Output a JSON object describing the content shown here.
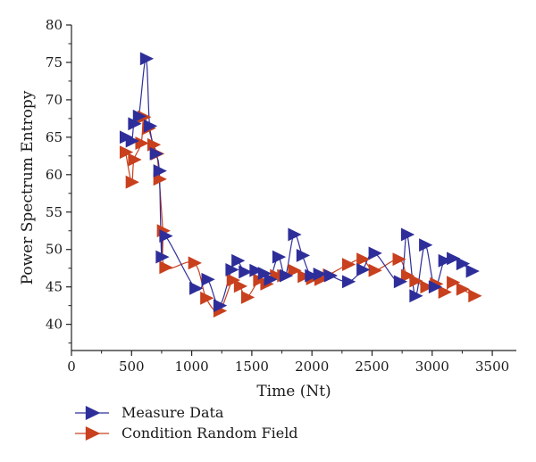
{
  "chart_data": {
    "type": "scatter",
    "xlabel": "Time (Nt)",
    "ylabel": "Power Spectrum Entropy",
    "xlim": [
      0,
      3700
    ],
    "ylim": [
      36.5,
      80
    ],
    "xticks": [
      0,
      500,
      1000,
      1500,
      2000,
      2500,
      3000,
      3500
    ],
    "yticks": [
      40,
      45,
      50,
      55,
      60,
      65,
      70,
      75,
      80
    ],
    "xtick_labels": [
      "0",
      "500",
      "1000",
      "1500",
      "2000",
      "2500",
      "3000",
      "3500"
    ],
    "ytick_labels": [
      "40",
      "45",
      "50",
      "55",
      "60",
      "65",
      "70",
      "75",
      "80"
    ],
    "grid": false,
    "legend_position": "bottom-left",
    "marker": "right-triangle",
    "series": [
      {
        "name": "Measure Data",
        "color": "#2e2e9a",
        "points": [
          [
            450,
            65.0
          ],
          [
            500,
            64.5
          ],
          [
            520,
            66.8
          ],
          [
            560,
            67.8
          ],
          [
            620,
            75.5
          ],
          [
            650,
            66.5
          ],
          [
            700,
            62.8
          ],
          [
            730,
            60.5
          ],
          [
            750,
            49.0
          ],
          [
            780,
            51.8
          ],
          [
            1030,
            44.8
          ],
          [
            1130,
            46.0
          ],
          [
            1230,
            42.5
          ],
          [
            1330,
            47.3
          ],
          [
            1380,
            48.5
          ],
          [
            1440,
            47.0
          ],
          [
            1530,
            47.2
          ],
          [
            1600,
            46.8
          ],
          [
            1650,
            46.0
          ],
          [
            1720,
            49.0
          ],
          [
            1780,
            46.5
          ],
          [
            1850,
            52.0
          ],
          [
            1920,
            49.2
          ],
          [
            1990,
            46.5
          ],
          [
            2060,
            46.7
          ],
          [
            2150,
            46.5
          ],
          [
            2300,
            45.7
          ],
          [
            2420,
            47.3
          ],
          [
            2520,
            49.5
          ],
          [
            2730,
            45.7
          ],
          [
            2790,
            52.0
          ],
          [
            2860,
            43.8
          ],
          [
            2940,
            50.6
          ],
          [
            3020,
            45.0
          ],
          [
            3100,
            48.5
          ],
          [
            3170,
            48.8
          ],
          [
            3250,
            48.1
          ],
          [
            3330,
            47.1
          ]
        ]
      },
      {
        "name": "Condition Random Field",
        "color": "#c8401e",
        "points": [
          [
            450,
            63.0
          ],
          [
            500,
            59.0
          ],
          [
            520,
            62.0
          ],
          [
            580,
            64.2
          ],
          [
            600,
            67.7
          ],
          [
            640,
            66.2
          ],
          [
            680,
            64.0
          ],
          [
            710,
            62.8
          ],
          [
            730,
            59.4
          ],
          [
            760,
            52.5
          ],
          [
            780,
            47.6
          ],
          [
            1020,
            48.2
          ],
          [
            1120,
            43.5
          ],
          [
            1230,
            41.8
          ],
          [
            1340,
            45.9
          ],
          [
            1400,
            45.1
          ],
          [
            1460,
            43.6
          ],
          [
            1560,
            45.9
          ],
          [
            1620,
            45.4
          ],
          [
            1700,
            46.5
          ],
          [
            1760,
            46.5
          ],
          [
            1850,
            47.2
          ],
          [
            1930,
            46.4
          ],
          [
            2000,
            46.1
          ],
          [
            2070,
            46.0
          ],
          [
            2140,
            46.6
          ],
          [
            2300,
            48.0
          ],
          [
            2420,
            48.7
          ],
          [
            2520,
            47.2
          ],
          [
            2720,
            48.7
          ],
          [
            2790,
            46.5
          ],
          [
            2860,
            45.8
          ],
          [
            2950,
            45.0
          ],
          [
            3030,
            45.4
          ],
          [
            3100,
            44.3
          ],
          [
            3170,
            45.6
          ],
          [
            3250,
            44.7
          ],
          [
            3350,
            43.8
          ]
        ]
      }
    ]
  }
}
